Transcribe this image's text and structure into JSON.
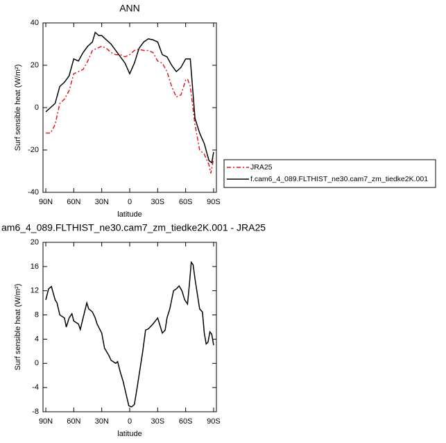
{
  "chart_data": [
    {
      "type": "line",
      "title": "ANN",
      "xlabel": "latitude",
      "ylabel": "Surf sensible heat (W/m²)",
      "xlim": [
        93,
        -93
      ],
      "ylim": [
        -40,
        40
      ],
      "xticks": [
        {
          "value": 90,
          "label": "90N"
        },
        {
          "value": 60,
          "label": "60N"
        },
        {
          "value": 30,
          "label": "30N"
        },
        0,
        {
          "value": -30,
          "label": "30S"
        },
        {
          "value": -60,
          "label": "60S"
        },
        {
          "value": -90,
          "label": "90S"
        }
      ],
      "yticks": [
        -40,
        -20,
        0,
        20,
        40
      ],
      "legend": "outside-right",
      "series": [
        {
          "name": "JRA25",
          "color": "#e8141a",
          "line_style": "dashed",
          "x": [
            90,
            85,
            80,
            75,
            70,
            65,
            60,
            55,
            50,
            45,
            40,
            35,
            30,
            25,
            20,
            15,
            10,
            5,
            0,
            -5,
            -10,
            -15,
            -20,
            -25,
            -30,
            -35,
            -40,
            -45,
            -50,
            -55,
            -60,
            -62,
            -65,
            -70,
            -75,
            -80,
            -85,
            -87,
            -90
          ],
          "values": [
            -12,
            -12,
            -8,
            2,
            4,
            8,
            16,
            17,
            18,
            22,
            27,
            28,
            29,
            28,
            26,
            25,
            25,
            24,
            25,
            27,
            27.5,
            27,
            27,
            26,
            22,
            21,
            17,
            10,
            5,
            6,
            13,
            13.5,
            10,
            -8,
            -20,
            -22,
            -27,
            -31,
            -24
          ]
        },
        {
          "name": "f.cam6_4_089.FLTHIST_ne30.cam7_zm_tiedke2K.001",
          "color": "#000000",
          "line_style": "solid",
          "x": [
            90,
            85,
            80,
            75,
            70,
            65,
            60,
            55,
            50,
            45,
            40,
            37,
            33,
            30,
            25,
            20,
            15,
            10,
            5,
            0,
            -5,
            -10,
            -15,
            -20,
            -25,
            -30,
            -35,
            -40,
            -45,
            -50,
            -55,
            -60,
            -65,
            -70,
            -75,
            -80,
            -85,
            -88,
            -90
          ],
          "values": [
            -2,
            0,
            2,
            10,
            12,
            15,
            23,
            22,
            26,
            29,
            31,
            35.5,
            34,
            34,
            32,
            30,
            27,
            24,
            21,
            16,
            21,
            28,
            31,
            32.5,
            32,
            31,
            25,
            24,
            20,
            17,
            19,
            23,
            23,
            -5,
            -12,
            -17,
            -25,
            -26,
            -21
          ]
        }
      ]
    },
    {
      "type": "line",
      "title": "am6_4_089.FLTHIST_ne30.cam7_zm_tiedke2K.001 - JRA25",
      "xlabel": "latitude",
      "ylabel": "Surf sensible heat (W/m²)",
      "xlim": [
        93,
        -93
      ],
      "ylim": [
        -8,
        20
      ],
      "xticks": [
        {
          "value": 90,
          "label": "90N"
        },
        {
          "value": 60,
          "label": "60N"
        },
        {
          "value": 30,
          "label": "30N"
        },
        0,
        {
          "value": -30,
          "label": "30S"
        },
        {
          "value": -60,
          "label": "60S"
        },
        {
          "value": -90,
          "label": "90S"
        }
      ],
      "yticks": [
        -8,
        -4,
        0,
        4,
        8,
        12,
        16,
        20
      ],
      "color": "#000000",
      "x": [
        90,
        87,
        84,
        80,
        78,
        75,
        70,
        68,
        65,
        62,
        60,
        55,
        53,
        50,
        46,
        44,
        40,
        37,
        35,
        30,
        27,
        25,
        22,
        20,
        15,
        13,
        10,
        7,
        4,
        1,
        -2,
        -5,
        -8,
        -11,
        -14,
        -17,
        -20,
        -25,
        -30,
        -33,
        -35,
        -38,
        -40,
        -43,
        -47,
        -50,
        -53,
        -56,
        -59,
        -62,
        -64,
        -66,
        -68,
        -70,
        -72,
        -75,
        -78,
        -80,
        -82,
        -84,
        -86,
        -88,
        -90
      ],
      "values": [
        10.5,
        12.3,
        12.7,
        10.5,
        10,
        8,
        7.5,
        6,
        7.5,
        8.2,
        7,
        6.5,
        5.6,
        7.5,
        10,
        9,
        8.5,
        7.5,
        6.5,
        5,
        2.5,
        2,
        1.2,
        0.5,
        0,
        0.3,
        -1.5,
        -3,
        -5,
        -7,
        -7.2,
        -6.8,
        -4,
        -1,
        2,
        5.5,
        5.7,
        6.5,
        7.5,
        6,
        5,
        5.5,
        7.5,
        9,
        12,
        12.3,
        12.8,
        12,
        10.5,
        9.8,
        13,
        16.7,
        16.3,
        14,
        12,
        9,
        8.5,
        5,
        3.2,
        3.5,
        5.2,
        4.8,
        3
      ]
    }
  ]
}
